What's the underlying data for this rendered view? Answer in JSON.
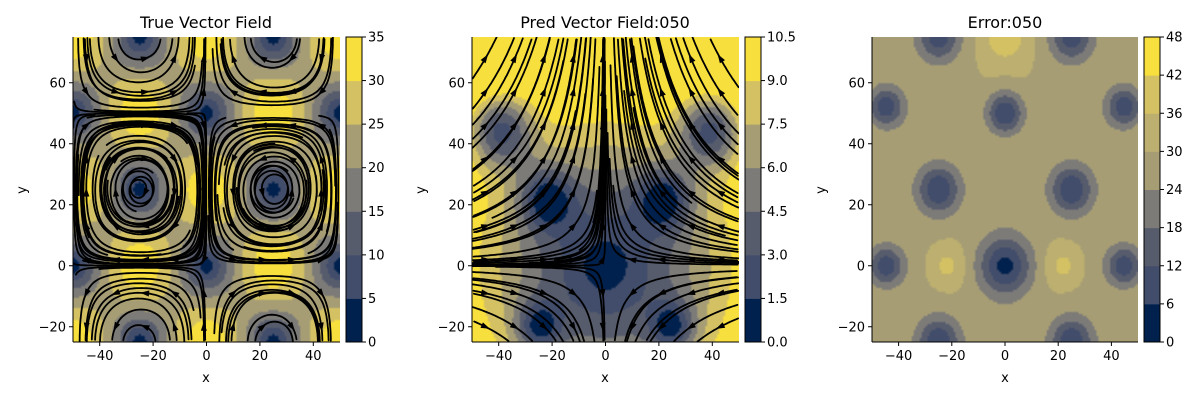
{
  "chart_data": [
    {
      "type": "heatmap",
      "subtype": "filled-contour-with-streamlines",
      "title": "True Vector Field",
      "xlabel": "x",
      "ylabel": "y",
      "xlim": [
        -50,
        50
      ],
      "ylim": [
        -25,
        75
      ],
      "xticks": [
        -40,
        -20,
        0,
        20,
        40
      ],
      "yticks": [
        -20,
        0,
        20,
        40,
        60
      ],
      "colorbar": {
        "min": 0,
        "max": 35,
        "levels": 7,
        "ticks": [
          "0",
          "5",
          "10",
          "15",
          "20",
          "25",
          "30",
          "35"
        ]
      },
      "colormap": "cividis",
      "field": "vortex-lattice",
      "field_summary": {
        "vortex_centers": [
          [
            -25,
            25
          ],
          [
            25,
            25
          ],
          [
            -25,
            75
          ],
          [
            25,
            75
          ],
          [
            -25,
            -25
          ],
          [
            25,
            -25
          ]
        ],
        "low_magnitude_points": [
          [
            0,
            0
          ],
          [
            0,
            50
          ],
          [
            -50,
            0
          ],
          [
            50,
            0
          ],
          [
            -50,
            50
          ],
          [
            50,
            50
          ]
        ]
      }
    },
    {
      "type": "heatmap",
      "subtype": "filled-contour-with-streamlines",
      "title": "Pred Vector Field:050",
      "xlabel": "x",
      "ylabel": "y",
      "xlim": [
        -50,
        50
      ],
      "ylim": [
        -25,
        75
      ],
      "xticks": [
        -40,
        -20,
        0,
        20,
        40
      ],
      "yticks": [
        -20,
        0,
        20,
        40,
        60
      ],
      "colorbar": {
        "min": 0.0,
        "max": 10.5,
        "levels": 7,
        "ticks": [
          "0.0",
          "1.5",
          "3.0",
          "4.5",
          "6.0",
          "7.5",
          "9.0",
          "10.5"
        ]
      },
      "colormap": "cividis",
      "field": "saddle",
      "field_summary": {
        "saddle_point": [
          0,
          0
        ],
        "inflow_axis": "x",
        "outflow_axis": "y",
        "low_magnitude_lobes": [
          [
            -40,
            45
          ],
          [
            40,
            45
          ],
          [
            -22,
            20
          ],
          [
            22,
            20
          ],
          [
            -25,
            -20
          ],
          [
            25,
            -20
          ]
        ]
      }
    },
    {
      "type": "heatmap",
      "subtype": "filled-contour",
      "title": "Error:050",
      "xlabel": "x",
      "ylabel": "y",
      "xlim": [
        -50,
        50
      ],
      "ylim": [
        -25,
        75
      ],
      "xticks": [
        -40,
        -20,
        0,
        20,
        40
      ],
      "yticks": [
        -20,
        0,
        20,
        40,
        60
      ],
      "colorbar": {
        "min": 0,
        "max": 48,
        "levels": 8,
        "ticks": [
          "0",
          "6",
          "12",
          "18",
          "24",
          "30",
          "36",
          "42",
          "48"
        ]
      },
      "colormap": "cividis",
      "field_summary": {
        "low_error_points": [
          [
            0,
            0
          ],
          [
            0,
            50
          ],
          [
            -25,
            25
          ],
          [
            25,
            25
          ],
          [
            -25,
            -25
          ],
          [
            25,
            -25
          ],
          [
            -25,
            75
          ],
          [
            -45,
            0
          ],
          [
            45,
            0
          ],
          [
            -45,
            50
          ],
          [
            45,
            50
          ]
        ],
        "high_error_points": [
          [
            -22,
            0
          ],
          [
            22,
            0
          ],
          [
            0,
            75
          ]
        ]
      }
    }
  ],
  "palette": [
    "#00204d",
    "#414d6b",
    "#575c6d",
    "#7c7b78",
    "#a69d75",
    "#bcaf6f",
    "#d3c164",
    "#f7df3d"
  ]
}
